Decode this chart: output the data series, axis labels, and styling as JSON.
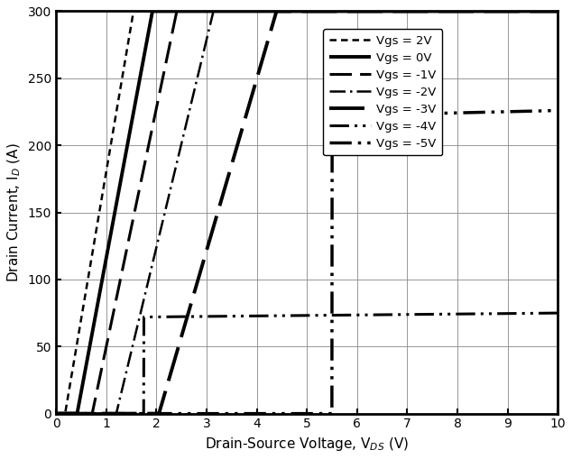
{
  "title": "",
  "xlabel": "Drain-Source Voltage, V$_{DS}$ (V)",
  "ylabel": "Drain Current, I$_D$ (A)",
  "xlim": [
    0,
    10
  ],
  "ylim": [
    0,
    300
  ],
  "xticks": [
    0,
    1,
    2,
    3,
    4,
    5,
    6,
    7,
    8,
    9,
    10
  ],
  "yticks": [
    0,
    50,
    100,
    150,
    200,
    250,
    300
  ],
  "curves": [
    {
      "label": "Vgs = 2V",
      "linestyle_key": "short_dash",
      "linewidth": 1.8,
      "Vth": 0.18,
      "slope": 220,
      "Isat": 9999,
      "Ron_sat": 0.005
    },
    {
      "label": "Vgs = 0V",
      "linestyle_key": "solid",
      "linewidth": 2.8,
      "Vth": 0.42,
      "slope": 200,
      "Isat": 9999,
      "Ron_sat": 0.005
    },
    {
      "label": "Vgs = -1V",
      "linestyle_key": "long_dash",
      "linewidth": 2.2,
      "Vth": 0.72,
      "slope": 185,
      "Isat": 9999,
      "Ron_sat": 0.005
    },
    {
      "label": "Vgs = -2V",
      "linestyle_key": "dash_dot",
      "linewidth": 1.8,
      "Vth": 1.18,
      "slope": 165,
      "Isat": 9999,
      "Ron_sat": 0.005
    },
    {
      "label": "Vgs = -3V",
      "linestyle_key": "long_dash2",
      "linewidth": 2.8,
      "Vth": 2.0,
      "slope": 145,
      "Isat": 9999,
      "Ron_sat": 0.005
    },
    {
      "label": "Vgs = -4V",
      "linestyle_key": "dash_dot_dot",
      "linewidth": 2.2,
      "Vth": 0.0,
      "slope": 0,
      "Isat": 72,
      "Ron_sat": 0.012,
      "x_start": 1.8
    },
    {
      "label": "Vgs = -5V",
      "linestyle_key": "dash_dot_dot2",
      "linewidth": 2.5,
      "Vth": 0.0,
      "slope": 0,
      "Isat": 222,
      "Ron_sat": 0.008,
      "x_start": 5.5
    }
  ]
}
